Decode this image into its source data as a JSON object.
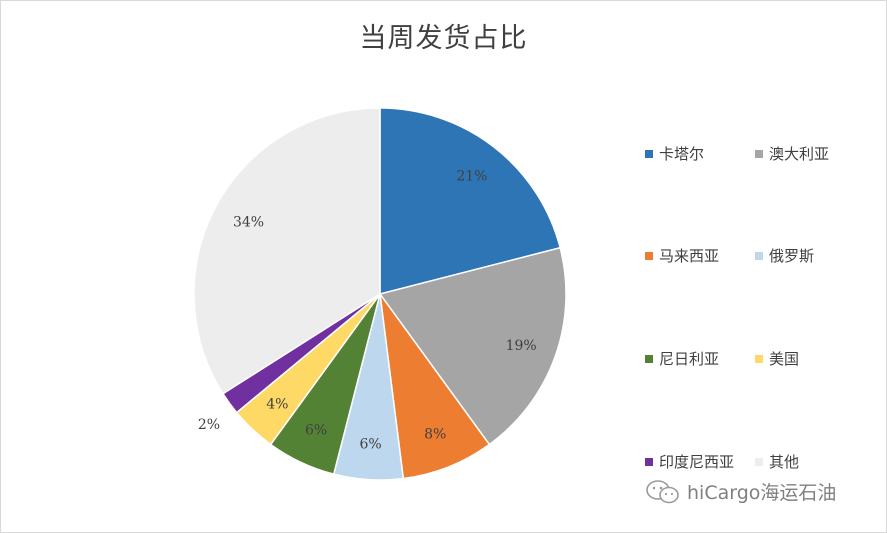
{
  "chart_data": {
    "type": "pie",
    "title": "当周发货占比",
    "slices": [
      {
        "name": "卡塔尔",
        "value": 21,
        "label": "21%",
        "color": "#2e75b6"
      },
      {
        "name": "澳大利亚",
        "value": 19,
        "label": "19%",
        "color": "#a5a5a5"
      },
      {
        "name": "马来西亚",
        "value": 8,
        "label": "8%",
        "color": "#ed7d31"
      },
      {
        "name": "俄罗斯",
        "value": 6,
        "label": "6%",
        "color": "#bdd7ee"
      },
      {
        "name": "尼日利亚",
        "value": 6,
        "label": "6%",
        "color": "#548235"
      },
      {
        "name": "美国",
        "value": 4,
        "label": "4%",
        "color": "#ffd966"
      },
      {
        "name": "印度尼西亚",
        "value": 2,
        "label": "2%",
        "color": "#7030a0"
      },
      {
        "name": "其他",
        "value": 34,
        "label": "34%",
        "color": "#ededed"
      }
    ],
    "legend_position": "right"
  },
  "watermark": {
    "text": "hiCargo海运石油",
    "icon": "wechat-icon"
  }
}
